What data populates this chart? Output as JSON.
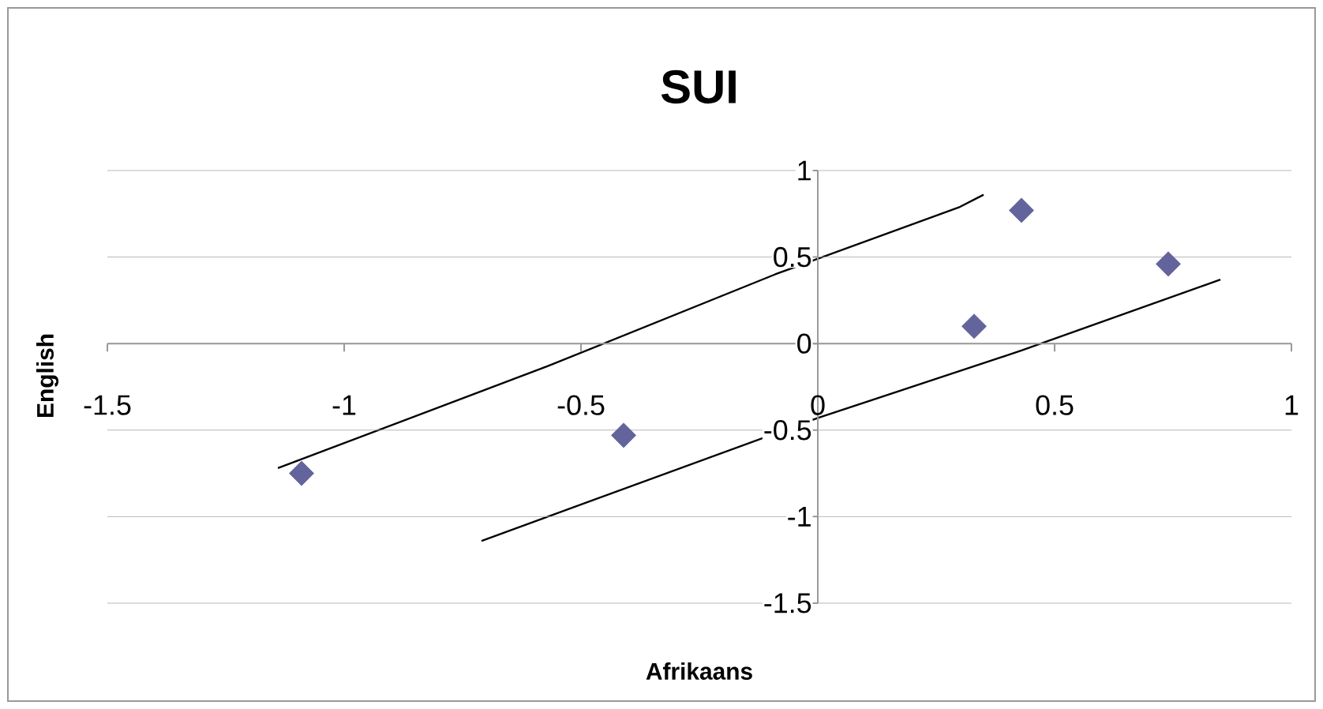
{
  "chart_data": {
    "type": "scatter",
    "title": "SUI",
    "xlabel": "Afrikaans",
    "ylabel": "English",
    "xlim": [
      -1.5,
      1
    ],
    "ylim": [
      -1.5,
      1
    ],
    "xticks": [
      -1.5,
      -1,
      -0.5,
      0,
      0.5,
      1
    ],
    "yticks": [
      -1.5,
      -1,
      -0.5,
      0,
      0.5,
      1
    ],
    "grid": "y",
    "marker": "diamond",
    "series": [
      {
        "color": "#64649c",
        "x": [
          -1.09,
          -0.41,
          0.33,
          0.43,
          0.74
        ],
        "values": [
          -0.75,
          -0.53,
          0.1,
          0.77,
          0.46
        ]
      },
      {
        "type": "line",
        "color": "#000000",
        "marker": "none",
        "x": [
          -1.14,
          -0.57,
          -0.09,
          0.3,
          0.35
        ],
        "values": [
          -0.72,
          -0.13,
          0.4,
          0.79,
          0.86
        ]
      },
      {
        "type": "line",
        "color": "#000000",
        "marker": "none",
        "x": [
          -0.71,
          0.0,
          0.43,
          0.85
        ],
        "values": [
          -1.14,
          -0.43,
          -0.04,
          0.37
        ]
      }
    ]
  }
}
